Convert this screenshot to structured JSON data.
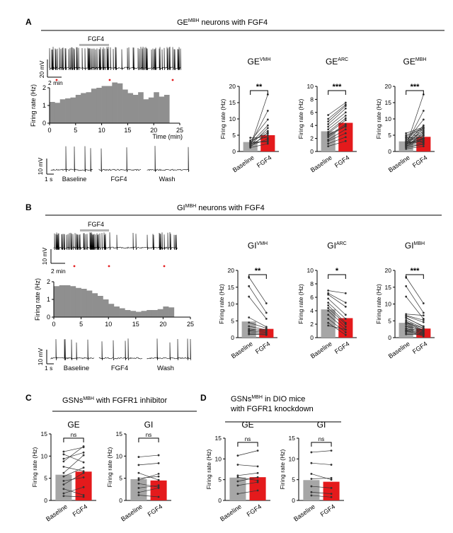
{
  "panels": {
    "A": {
      "letter": "A",
      "title_main": "GE",
      "title_sup": "MBH",
      "title_rest": " neurons with FGF4"
    },
    "B": {
      "letter": "B",
      "title_main": "GI",
      "title_sup": "MBH",
      "title_rest": " neurons with FGF4"
    },
    "C": {
      "letter": "C",
      "title_main": "GSNs",
      "title_sup": "MBH",
      "title_rest": " with FGFR1 inhibitor"
    },
    "D": {
      "letter": "D",
      "title_main": "GSNs",
      "title_sup": "MBH",
      "title_rest": " in DIO mice",
      "title_line2": "with FGFR1 knockdown"
    }
  },
  "trace_labels": {
    "fgf4_bar": "FGF4",
    "A": {
      "v_scale": "20 mV",
      "t_scale": "2 min",
      "seg_v": "10 mV",
      "seg_t": "1 s",
      "seg_labels": [
        "Baseline",
        "FGF4",
        "Wash"
      ]
    },
    "B": {
      "v_scale": "10 mV",
      "t_scale": "2 min",
      "seg_v": "10 mV",
      "seg_t": "1 s",
      "seg_labels": [
        "Baseline",
        "FGF4",
        "Wash"
      ]
    }
  },
  "colors": {
    "baseline": "#a6a6a6",
    "fgf4": "#e41a1c",
    "trace": "#000000",
    "fgf4_bar": "#b3b3b3",
    "marker": "#e41a1c"
  },
  "chart_data": [
    {
      "id": "A-rate",
      "type": "bar",
      "xlabel": "Time (min)",
      "ylabel": "Firing rate (Hz)",
      "xlim": [
        0,
        25
      ],
      "ylim": [
        0,
        2
      ],
      "xticks": [
        0,
        5,
        10,
        15,
        20,
        25
      ],
      "yticks": [
        0,
        1,
        2
      ],
      "bin_width_min": 1,
      "values": [
        1.2,
        1.15,
        1.35,
        1.4,
        1.45,
        1.6,
        1.7,
        1.75,
        1.95,
        2.0,
        2.1,
        2.1,
        2.3,
        2.25,
        1.9,
        1.7,
        1.6,
        1.75,
        1.35,
        1.45,
        1.75,
        1.5,
        1.6
      ]
    },
    {
      "id": "B-rate",
      "type": "bar",
      "xlabel": "",
      "ylabel": "Firing rate (Hz)",
      "xlim": [
        0,
        25
      ],
      "ylim": [
        0,
        2
      ],
      "xticks": [
        0,
        5,
        10,
        15,
        20,
        25
      ],
      "yticks": [
        0,
        1,
        2
      ],
      "bin_width_min": 1,
      "values": [
        1.75,
        1.8,
        1.8,
        1.75,
        1.65,
        1.6,
        1.5,
        1.35,
        1.2,
        1.0,
        0.75,
        0.6,
        0.5,
        0.4,
        0.35,
        0.3,
        0.35,
        0.4,
        0.4,
        0.45,
        0.6,
        0.55
      ]
    },
    {
      "id": "A-GEVMH",
      "type": "bar",
      "title": "GE",
      "title_sup": "VMH",
      "categories": [
        "Baseline",
        "FGF4"
      ],
      "ylabel": "Firing rate (Hz)",
      "ylim": [
        0,
        20
      ],
      "yticks": [
        0,
        5,
        10,
        15,
        20
      ],
      "significance": "**",
      "means": [
        2.9,
        5.0
      ],
      "pairs": [
        [
          1.6,
          17.5
        ],
        [
          2.2,
          12.5
        ],
        [
          3.1,
          9.8
        ],
        [
          2.5,
          8.0
        ],
        [
          1.9,
          7.2
        ],
        [
          2.7,
          6.3
        ],
        [
          1.4,
          5.8
        ],
        [
          3.4,
          5.5
        ],
        [
          2.1,
          4.9
        ],
        [
          4.2,
          4.2
        ],
        [
          1.8,
          3.8
        ],
        [
          2.4,
          3.3
        ],
        [
          3.0,
          2.9
        ],
        [
          1.2,
          2.4
        ]
      ]
    },
    {
      "id": "A-GEARC",
      "type": "bar",
      "title": "GE",
      "title_sup": "ARC",
      "categories": [
        "Baseline",
        "FGF4"
      ],
      "ylabel": "Firing rate (Hz)",
      "ylim": [
        0,
        10
      ],
      "yticks": [
        0,
        2,
        4,
        6,
        8,
        10
      ],
      "significance": "***",
      "means": [
        3.1,
        4.4
      ],
      "pairs": [
        [
          5.6,
          7.5
        ],
        [
          5.0,
          7.2
        ],
        [
          4.6,
          7.0
        ],
        [
          4.2,
          6.6
        ],
        [
          3.8,
          6.0
        ],
        [
          3.4,
          5.5
        ],
        [
          3.0,
          5.1
        ],
        [
          2.8,
          4.8
        ],
        [
          2.4,
          4.2
        ],
        [
          2.2,
          4.0
        ],
        [
          1.8,
          3.4
        ],
        [
          1.6,
          2.8
        ],
        [
          1.2,
          2.2
        ],
        [
          0.8,
          1.6
        ],
        [
          2.6,
          3.8
        ]
      ]
    },
    {
      "id": "A-GEMBH",
      "type": "bar",
      "title": "GE",
      "title_sup": "MBH",
      "categories": [
        "Baseline",
        "FGF4"
      ],
      "ylabel": "Firing rate (Hz)",
      "ylim": [
        0,
        20
      ],
      "yticks": [
        0,
        5,
        10,
        15,
        20
      ],
      "significance": "***",
      "means": [
        3.1,
        4.5
      ],
      "pairs": [
        [
          1.6,
          17.5
        ],
        [
          2.2,
          12.5
        ],
        [
          3.1,
          9.8
        ],
        [
          2.5,
          8.0
        ],
        [
          5.6,
          7.5
        ],
        [
          5.0,
          7.2
        ],
        [
          4.6,
          7.0
        ],
        [
          1.9,
          7.2
        ],
        [
          4.2,
          6.6
        ],
        [
          3.8,
          6.0
        ],
        [
          2.7,
          6.3
        ],
        [
          1.4,
          5.8
        ],
        [
          3.4,
          5.5
        ],
        [
          3.0,
          5.1
        ],
        [
          2.1,
          4.9
        ],
        [
          2.8,
          4.8
        ],
        [
          4.2,
          4.2
        ],
        [
          2.4,
          4.2
        ],
        [
          1.8,
          3.8
        ],
        [
          2.2,
          4.0
        ],
        [
          2.4,
          3.3
        ],
        [
          1.8,
          3.4
        ],
        [
          3.0,
          2.9
        ],
        [
          1.6,
          2.8
        ],
        [
          1.2,
          2.4
        ],
        [
          1.2,
          2.2
        ],
        [
          0.8,
          1.6
        ],
        [
          2.6,
          3.8
        ]
      ]
    },
    {
      "id": "B-GIVMH",
      "type": "bar",
      "title": "GI",
      "title_sup": "VMH",
      "categories": [
        "Baseline",
        "FGF4"
      ],
      "ylabel": "Firing rate (Hz)",
      "ylim": [
        0,
        20
      ],
      "yticks": [
        0,
        5,
        10,
        15,
        20
      ],
      "significance": "**",
      "means": [
        4.8,
        2.6
      ],
      "pairs": [
        [
          18.0,
          10.2
        ],
        [
          15.3,
          7.4
        ],
        [
          12.2,
          5.6
        ],
        [
          6.0,
          3.2
        ],
        [
          4.5,
          2.8
        ],
        [
          3.4,
          2.3
        ],
        [
          2.6,
          1.9
        ],
        [
          2.0,
          1.6
        ],
        [
          1.7,
          1.3
        ],
        [
          1.2,
          1.0
        ],
        [
          1.0,
          0.8
        ],
        [
          2.2,
          2.4
        ]
      ]
    },
    {
      "id": "B-GIARC",
      "type": "bar",
      "title": "GI",
      "title_sup": "ARC",
      "categories": [
        "Baseline",
        "FGF4"
      ],
      "ylabel": "Firing rate (Hz)",
      "ylim": [
        0,
        10
      ],
      "yticks": [
        0,
        2,
        4,
        6,
        8,
        10
      ],
      "significance": "*",
      "means": [
        4.2,
        2.9
      ],
      "pairs": [
        [
          7.0,
          6.6
        ],
        [
          6.6,
          5.2
        ],
        [
          6.4,
          4.6
        ],
        [
          5.8,
          3.4
        ],
        [
          5.2,
          2.8
        ],
        [
          4.8,
          2.2
        ],
        [
          4.4,
          2.0
        ],
        [
          4.0,
          1.6
        ],
        [
          3.4,
          1.2
        ],
        [
          2.8,
          0.8
        ],
        [
          2.2,
          0.4
        ],
        [
          1.8,
          1.2
        ]
      ]
    },
    {
      "id": "B-GIMBH",
      "type": "bar",
      "title": "GI",
      "title_sup": "MBH",
      "categories": [
        "Baseline",
        "FGF4"
      ],
      "ylabel": "Firing rate (Hz)",
      "ylim": [
        0,
        20
      ],
      "yticks": [
        0,
        5,
        10,
        15,
        20
      ],
      "significance": "***",
      "means": [
        4.4,
        2.7
      ],
      "pairs": [
        [
          18.0,
          10.2
        ],
        [
          15.3,
          7.4
        ],
        [
          12.2,
          5.6
        ],
        [
          7.0,
          6.6
        ],
        [
          6.6,
          5.2
        ],
        [
          6.4,
          4.6
        ],
        [
          6.0,
          3.2
        ],
        [
          5.8,
          3.4
        ],
        [
          5.2,
          2.8
        ],
        [
          4.8,
          2.2
        ],
        [
          4.5,
          2.8
        ],
        [
          4.4,
          2.0
        ],
        [
          4.0,
          1.6
        ],
        [
          3.4,
          2.3
        ],
        [
          3.4,
          1.2
        ],
        [
          2.8,
          0.8
        ],
        [
          2.6,
          1.9
        ],
        [
          2.2,
          0.4
        ],
        [
          2.2,
          2.4
        ],
        [
          2.0,
          1.6
        ],
        [
          1.8,
          1.2
        ],
        [
          1.7,
          1.3
        ],
        [
          1.2,
          1.0
        ],
        [
          1.0,
          0.8
        ]
      ]
    },
    {
      "id": "C-GE",
      "type": "bar",
      "title": "GE",
      "categories": [
        "Baseline",
        "FGF4"
      ],
      "ylabel": "Firing rate (Hz)",
      "ylim": [
        0,
        15
      ],
      "yticks": [
        0,
        5,
        10,
        15
      ],
      "significance": "ns",
      "means": [
        5.8,
        6.5
      ],
      "pairs": [
        [
          11.0,
          12.0
        ],
        [
          10.4,
          8.6
        ],
        [
          9.4,
          10.8
        ],
        [
          8.8,
          12.2
        ],
        [
          7.6,
          6.6
        ],
        [
          6.2,
          10.2
        ],
        [
          5.4,
          7.4
        ],
        [
          4.4,
          5.2
        ],
        [
          3.6,
          6.2
        ],
        [
          2.6,
          1.2
        ],
        [
          1.6,
          3.0
        ],
        [
          1.0,
          0.8
        ]
      ]
    },
    {
      "id": "C-GI",
      "type": "bar",
      "title": "GI",
      "categories": [
        "Baseline",
        "FGF4"
      ],
      "ylabel": "Firing rate (Hz)",
      "ylim": [
        0,
        15
      ],
      "yticks": [
        0,
        5,
        10,
        15
      ],
      "significance": "ns",
      "means": [
        4.8,
        4.5
      ],
      "pairs": [
        [
          9.8,
          10.2
        ],
        [
          8.0,
          8.4
        ],
        [
          6.2,
          4.6
        ],
        [
          5.0,
          5.4
        ],
        [
          4.6,
          6.0
        ],
        [
          3.8,
          3.0
        ],
        [
          2.8,
          3.4
        ],
        [
          1.8,
          2.8
        ],
        [
          1.2,
          0.8
        ]
      ]
    },
    {
      "id": "D-GE",
      "type": "bar",
      "title": "GE",
      "categories": [
        "Baseline",
        "FGF4"
      ],
      "ylabel": "Firing rate (Hz)",
      "ylim": [
        0,
        15
      ],
      "yticks": [
        0,
        5,
        10,
        15
      ],
      "significance": "ns",
      "means": [
        5.5,
        5.6
      ],
      "pairs": [
        [
          10.8,
          12.0
        ],
        [
          8.6,
          8.2
        ],
        [
          6.0,
          6.6
        ],
        [
          5.6,
          4.8
        ],
        [
          4.6,
          5.6
        ],
        [
          3.6,
          4.4
        ],
        [
          1.6,
          2.4
        ]
      ]
    },
    {
      "id": "D-GI",
      "type": "bar",
      "title": "GI",
      "categories": [
        "Baseline",
        "FGF4"
      ],
      "ylabel": "Firing rate (Hz)",
      "ylim": [
        0,
        15
      ],
      "yticks": [
        0,
        5,
        10,
        15
      ],
      "significance": "ns",
      "means": [
        4.9,
        4.5
      ],
      "pairs": [
        [
          11.6,
          12.0
        ],
        [
          9.0,
          8.6
        ],
        [
          6.4,
          5.0
        ],
        [
          5.2,
          5.4
        ],
        [
          3.4,
          3.0
        ],
        [
          2.0,
          1.6
        ],
        [
          1.2,
          0.8
        ]
      ]
    }
  ]
}
